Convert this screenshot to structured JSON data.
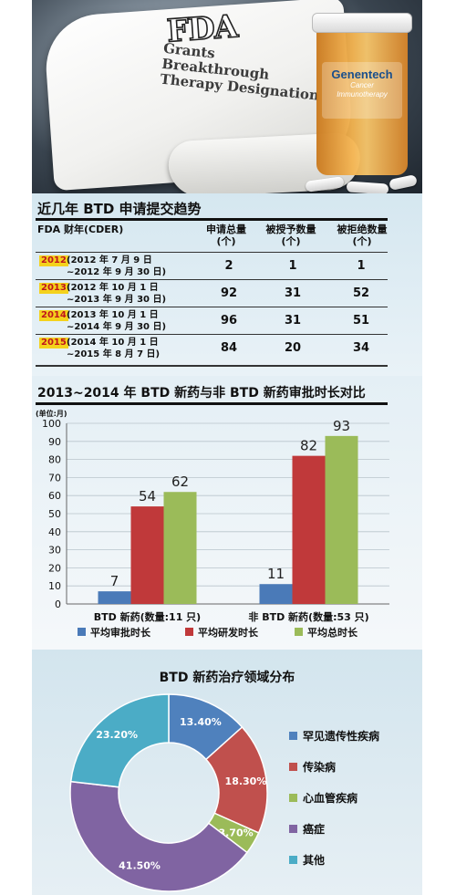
{
  "banner": {
    "logo_text": "FDA",
    "headline_line1": "Grants Breakthrough",
    "headline_line2": "Therapy Designation",
    "brand": "Genentech",
    "brand_sub1": "Cancer",
    "brand_sub2": "Immunotherapy"
  },
  "table": {
    "title": "近几年 BTD 申请提交趋势",
    "headers": {
      "fiscal_year": "FDA 财年(CDER)",
      "total": "申请总量\n(个)",
      "granted": "被授予数量\n(个)",
      "denied": "被拒绝数量\n(个)"
    },
    "rows": [
      {
        "year": "2012",
        "period": "(2012 年 7 月 9 日\n~2012 年 9 月 30 日)",
        "total": "2",
        "granted": "1",
        "denied": "1"
      },
      {
        "year": "2013",
        "period": "(2012 年 10 月 1 日\n~2013 年 9 月 30 日)",
        "total": "92",
        "granted": "31",
        "denied": "52"
      },
      {
        "year": "2014",
        "period": "(2013 年 10 月 1 日\n~2014 年 9 月 30 日)",
        "total": "96",
        "granted": "31",
        "denied": "51"
      },
      {
        "year": "2015",
        "period": "(2014 年 10 月 1 日\n~2015 年 8 月 7 日)",
        "total": "84",
        "granted": "20",
        "denied": "34"
      }
    ]
  },
  "chart_data": [
    {
      "type": "bar",
      "title": "2013~2014 年 BTD 新药与非 BTD 新药审批时长对比",
      "ylabel": "(单位:月)",
      "ylim": [
        0,
        100
      ],
      "yticks": [
        0,
        10,
        20,
        30,
        40,
        50,
        60,
        70,
        80,
        90,
        100
      ],
      "grid": true,
      "legend_position": "bottom",
      "categories": [
        "BTD 新药(数量:11 只)",
        "非 BTD 新药(数量:53 只)"
      ],
      "series": [
        {
          "name": "平均审批时长",
          "color": "#4a7ab8",
          "values": [
            7,
            11
          ]
        },
        {
          "name": "平均研发时长",
          "color": "#c0393a",
          "values": [
            54,
            82
          ]
        },
        {
          "name": "平均总时长",
          "color": "#9bbb59",
          "values": [
            62,
            93
          ]
        }
      ]
    },
    {
      "type": "pie",
      "title": "BTD 新药治疗领域分布",
      "donut": true,
      "legend_position": "right",
      "slices": [
        {
          "label": "罕见遗传性疾病",
          "value": 13.4,
          "display": "13.40%",
          "color": "#4f81bd"
        },
        {
          "label": "传染病",
          "value": 18.3,
          "display": "18.30%",
          "color": "#c0504d"
        },
        {
          "label": "心血管疾病",
          "value": 3.7,
          "display": "3.70%",
          "color": "#9bbb59"
        },
        {
          "label": "癌症",
          "value": 41.5,
          "display": "41.50%",
          "color": "#8064a2"
        },
        {
          "label": "其他",
          "value": 23.2,
          "display": "23.20%",
          "color": "#4bacc6"
        }
      ]
    }
  ]
}
